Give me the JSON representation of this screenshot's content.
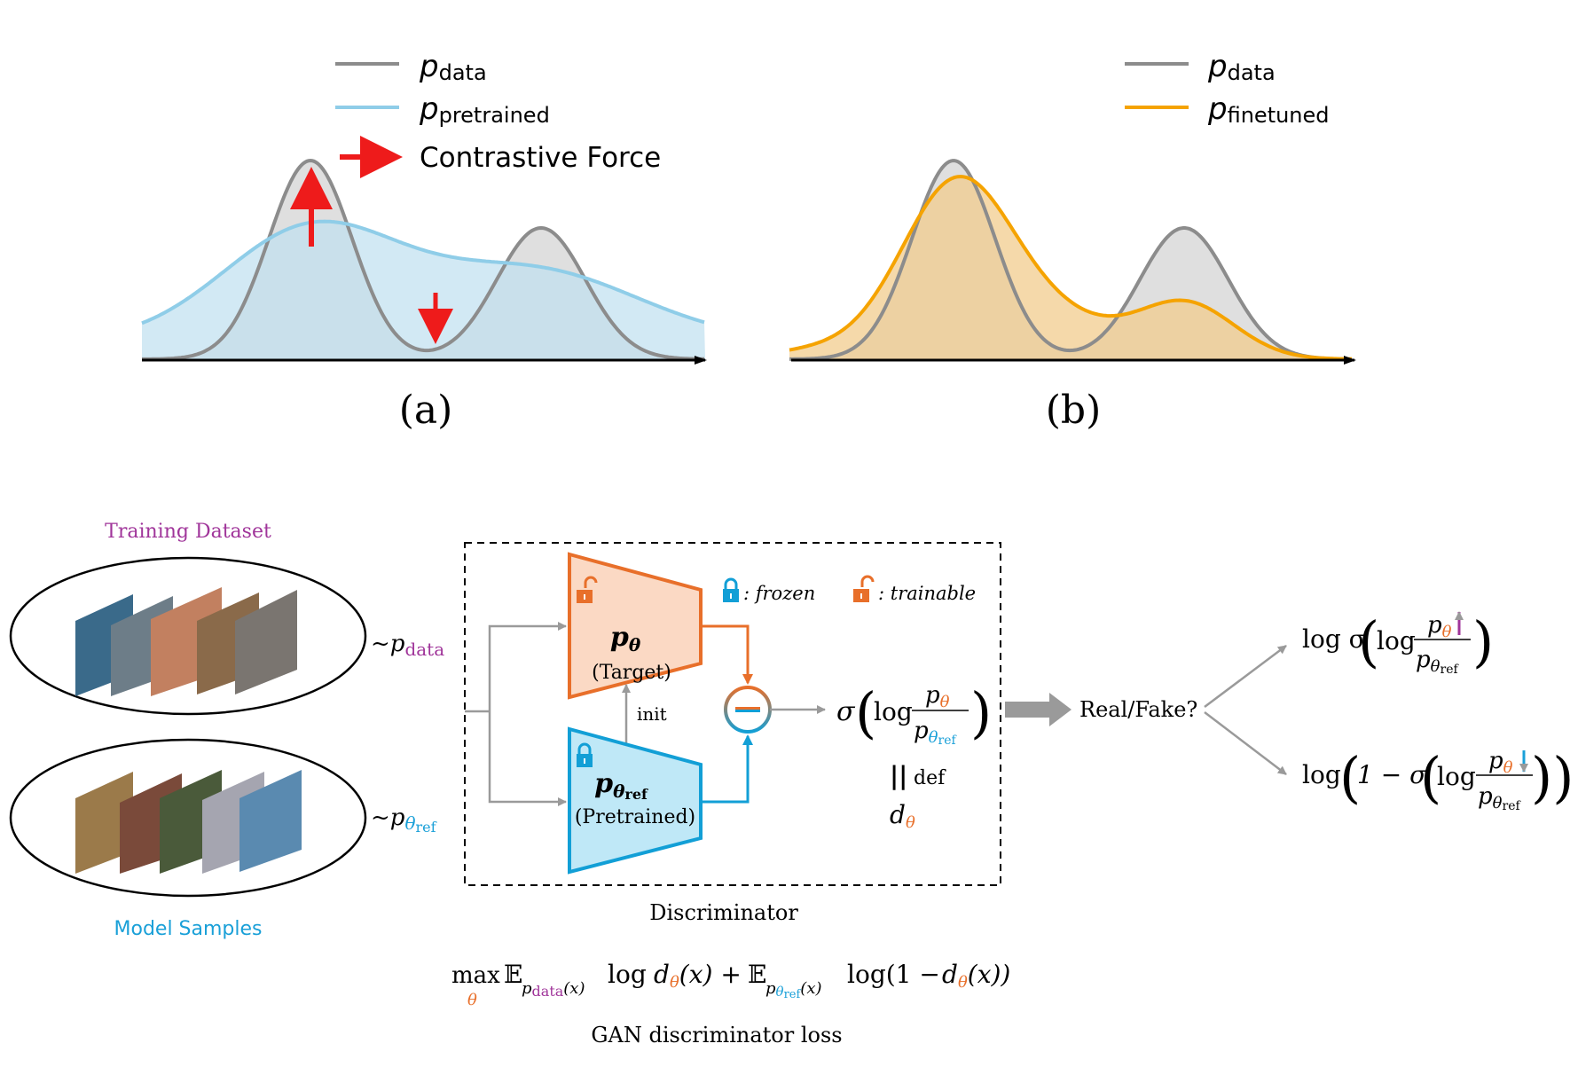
{
  "colors": {
    "data_curve": "#8c8c8c",
    "data_fill": "#d9d9d9",
    "pretrained_curve": "#8fcde8",
    "pretrained_fill": "#cfe8f5",
    "finetuned_curve": "#f5a300",
    "finetuned_fill": "#f2cc8d",
    "force_arrow": "#ee1b1b",
    "target": "#e86f2a",
    "target_fill": "#fbd9c4",
    "pretrained_box": "#129fd6",
    "pretrained_box_fill": "#bfe8f7",
    "purple": "#a0359a",
    "blue_label": "#1aa0d8",
    "gray_arrow": "#9a9a9a"
  },
  "panel_a": {
    "caption": "(a)",
    "legend": {
      "data": {
        "p": "p",
        "sub": "data"
      },
      "pretrained": {
        "p": "p",
        "sub": "pretrained"
      },
      "force": "Contrastive Force"
    }
  },
  "panel_b": {
    "caption": "(b)",
    "legend": {
      "data": {
        "p": "p",
        "sub": "data"
      },
      "finetuned": {
        "p": "p",
        "sub": "finetuned"
      }
    }
  },
  "pipeline": {
    "training_dataset_label": "Training Dataset",
    "model_samples_label": "Model Samples",
    "tilde_data": {
      "prefix": "~p",
      "sub": "data"
    },
    "tilde_ref": {
      "prefix": "~p",
      "sub": "θ",
      "subsub": "ref"
    },
    "frozen_legend": ": frozen",
    "trainable_legend": ": trainable",
    "target_model": {
      "symbol": "p",
      "sub": "θ",
      "name": "(Target)"
    },
    "pretrained_model": {
      "symbol": "p",
      "sub": "θ",
      "subsub": "ref",
      "name": "(Pretrained)"
    },
    "init_label": "init",
    "sigma_expr": {
      "sigma": "σ",
      "log": "log",
      "num": "p",
      "num_sub": "θ",
      "den": "p",
      "den_sub": "θ",
      "den_subsub": "ref"
    },
    "def_label": "def",
    "d_theta": {
      "d": "d",
      "sub": "θ"
    },
    "discriminator_label": "Discriminator",
    "real_fake": "Real/Fake?",
    "out_real": {
      "pre": "log σ",
      "log": "log",
      "num": "p",
      "num_sub": "θ",
      "den": "p",
      "den_sub": "θ",
      "den_subsub": "ref"
    },
    "out_fake": {
      "pre": "log",
      "one_minus": "1 − σ",
      "log": "log",
      "num": "p",
      "num_sub": "θ",
      "den": "p",
      "den_sub": "θ",
      "den_subsub": "ref"
    },
    "loss": {
      "max": "max",
      "max_sub": "θ",
      "E1": "𝔼",
      "E1_sub_p": "p",
      "E1_sub_data": "data",
      "E1_sub_x": "(x)",
      "log1": "log",
      "d1": "d",
      "d1_sub": "θ",
      "x1": "(x) +",
      "E2": "𝔼",
      "E2_sub_p": "p",
      "E2_sub_theta": "θ",
      "E2_sub_ref": "ref",
      "E2_sub_x": "(x)",
      "log2": "log(1 −",
      "d2": "d",
      "d2_sub": "θ",
      "x2": "(x))"
    },
    "loss_caption": "GAN discriminator loss"
  }
}
